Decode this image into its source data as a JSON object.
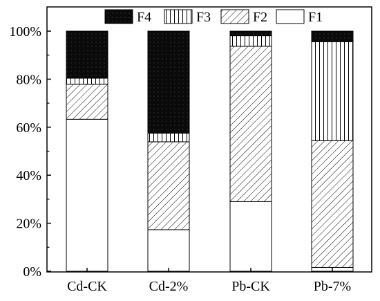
{
  "chart_data": {
    "type": "bar",
    "stacked": true,
    "categories": [
      "Cd-CK",
      "Cd-2%",
      "Pb-CK",
      "Pb-7%"
    ],
    "series": [
      {
        "name": "F1",
        "pattern": "solid-white",
        "values": [
          63.3,
          17.3,
          29.0,
          1.6
        ]
      },
      {
        "name": "F2",
        "pattern": "diagonal-hatch",
        "values": [
          14.6,
          36.6,
          64.7,
          52.8
        ]
      },
      {
        "name": "F3",
        "pattern": "vertical-lines",
        "values": [
          2.5,
          3.6,
          4.4,
          41.2
        ]
      },
      {
        "name": "F4",
        "pattern": "solid-black",
        "values": [
          19.6,
          42.5,
          1.9,
          4.4
        ]
      }
    ],
    "legend_order": [
      "F4",
      "F3",
      "F2",
      "F1"
    ],
    "legend_position": "top",
    "ylim": [
      0,
      100
    ],
    "yticks": [
      0,
      20,
      40,
      60,
      80,
      100
    ],
    "ytick_labels": [
      "0%",
      "20%",
      "40%",
      "60%",
      "80%",
      "100%"
    ],
    "title": "",
    "xlabel": "",
    "ylabel": "",
    "grid": false
  }
}
